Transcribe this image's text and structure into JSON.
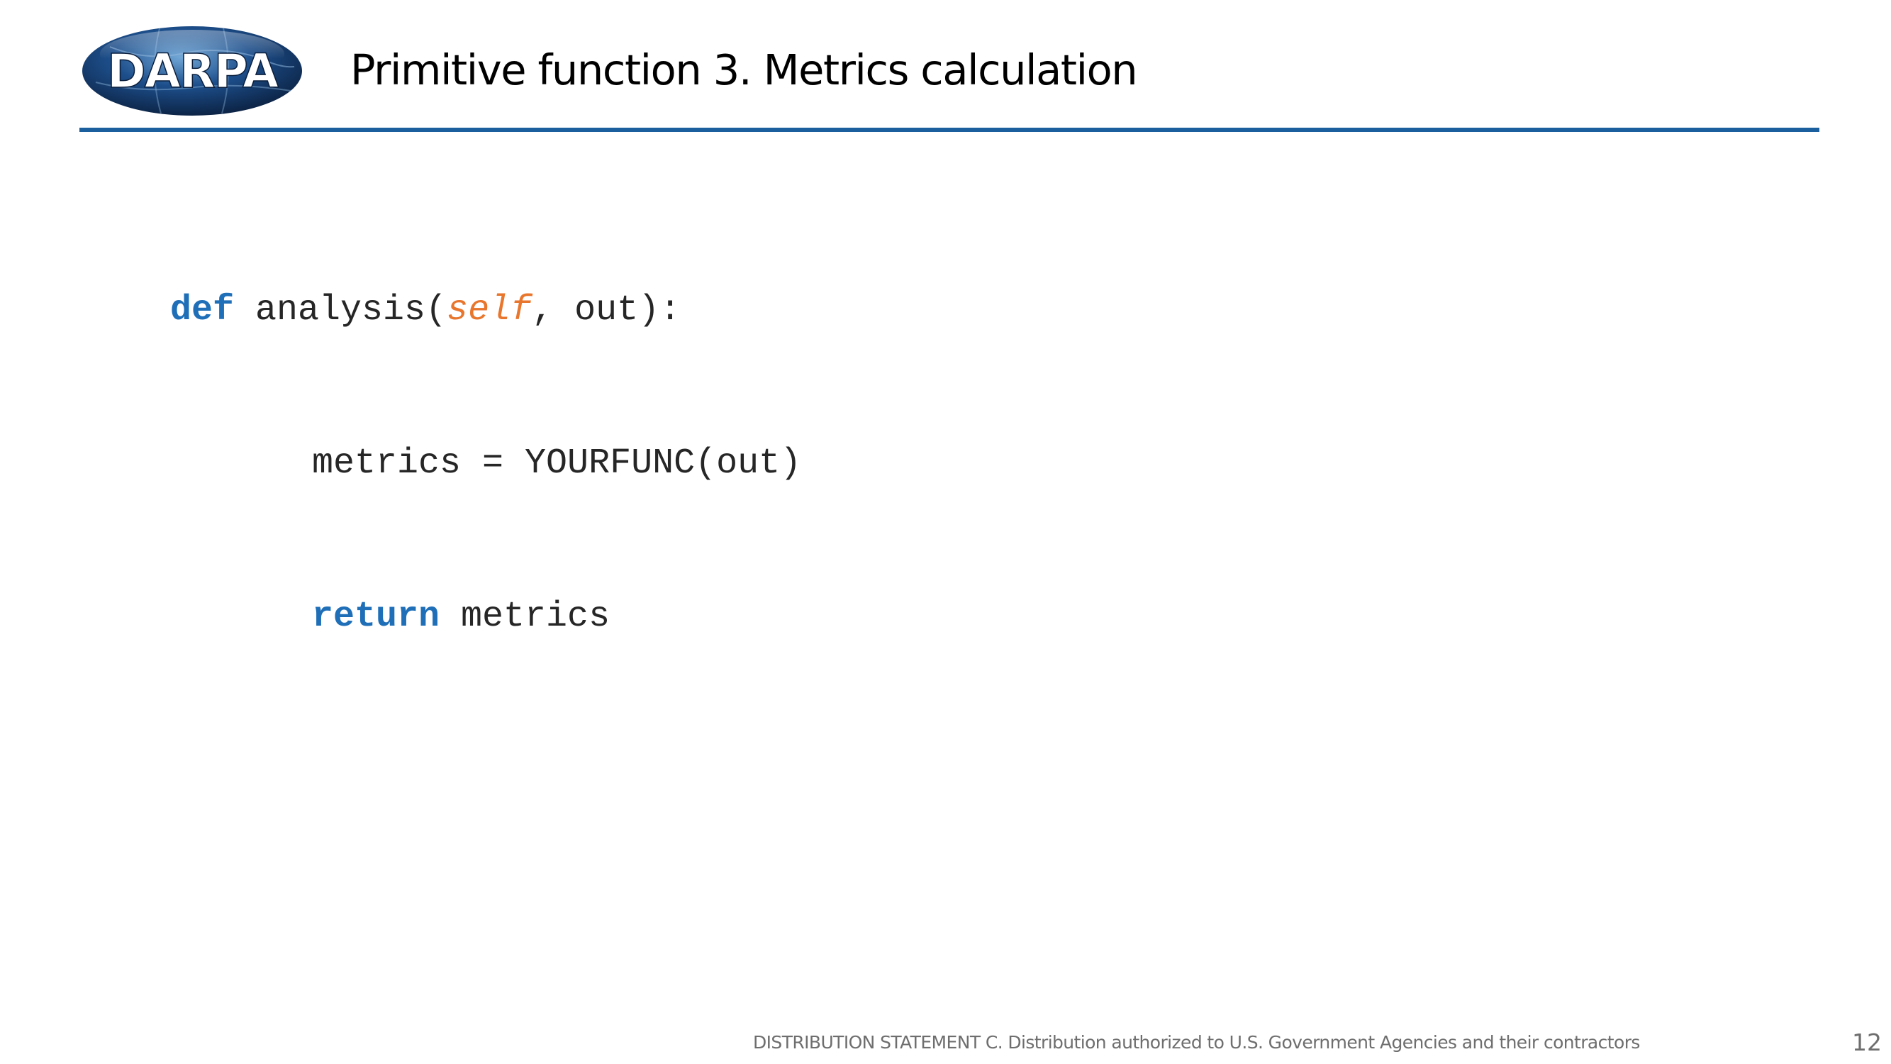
{
  "slide": {
    "logo_text": "DARPA",
    "title": "Primitive function 3. Metrics calculation",
    "code": {
      "line1": {
        "keyword": "def",
        "name": " analysis(",
        "self": "self",
        "rest": ", out):"
      },
      "line2": {
        "text": "metrics = YOURFUNC(out)"
      },
      "line3": {
        "keyword": "return",
        "rest": " metrics"
      }
    },
    "footer": "DISTRIBUTION STATEMENT C. Distribution authorized to U.S. Government Agencies and their contractors",
    "page_number": "12"
  },
  "colors": {
    "rule": "#1c5f9e",
    "keyword": "#1f6fb8",
    "self": "#e8762d",
    "footer": "#6e6e6e"
  }
}
